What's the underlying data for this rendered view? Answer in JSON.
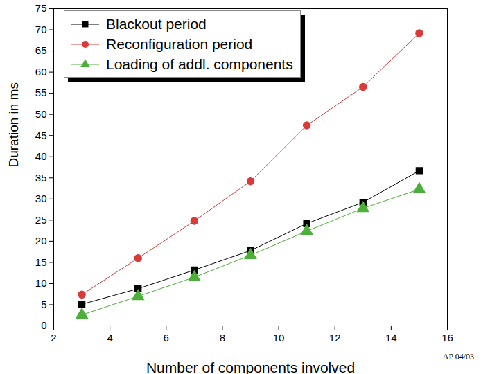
{
  "chart_data": {
    "type": "line",
    "x_label": "Number of components involved",
    "y_label": "Duration in ms",
    "annotation": "AP 04/03",
    "x": [
      3,
      5,
      7,
      9,
      11,
      13,
      15
    ],
    "series": [
      {
        "name": "Blackout period",
        "color": "#000000",
        "marker": "square",
        "line_style": "solid",
        "values": [
          5.1,
          8.8,
          13.2,
          17.8,
          24.2,
          29.2,
          36.7
        ]
      },
      {
        "name": "Reconfiguration period",
        "color": "#d93a3a",
        "marker": "circle",
        "line_style": "solid",
        "values": [
          7.4,
          16.0,
          24.8,
          34.2,
          47.4,
          56.5,
          69.2
        ]
      },
      {
        "name": "Loading of addl. components",
        "color": "#4caf3a",
        "marker": "triangle",
        "line_style": "solid",
        "values": [
          2.6,
          7.0,
          11.5,
          16.7,
          22.4,
          27.8,
          32.3
        ]
      }
    ],
    "xlim": [
      2,
      16
    ],
    "xticks": [
      2,
      4,
      6,
      8,
      10,
      12,
      14,
      16
    ],
    "ylim": [
      0,
      75
    ],
    "yticks": [
      0,
      5,
      10,
      15,
      20,
      25,
      30,
      35,
      40,
      45,
      50,
      55,
      60,
      65,
      70,
      75
    ],
    "grid": false,
    "legend": "top-left"
  }
}
